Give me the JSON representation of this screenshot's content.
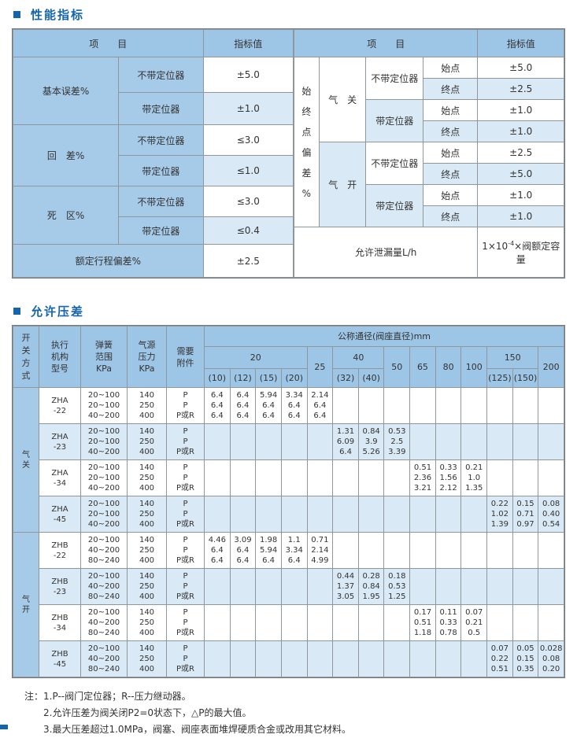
{
  "colors": {
    "accent": "#1464ae",
    "header_blue": "#9dc5e5",
    "label_blue": "#a6cbe8",
    "stripe_blue": "#d9e9f6",
    "border": "#8f979d"
  },
  "s1": {
    "title": "性能指标",
    "item_header": "项　　目",
    "value_header": "指标值",
    "left": {
      "groups": [
        {
          "label": "基本误差%",
          "sub1": "不带定位器",
          "val1": "±5.0",
          "sub2": "带定位器",
          "val2": "±1.0"
        },
        {
          "label": "回　差%",
          "sub1": "不带定位器",
          "val1": "≤3.0",
          "sub2": "带定位器",
          "val2": "≤1.0"
        },
        {
          "label": "死　区%",
          "sub1": "不带定位器",
          "val1": "≤3.0",
          "sub2": "带定位器",
          "val2": "≤0.4"
        }
      ],
      "travel_label": "额定行程偏差%",
      "travel_value": "±2.5"
    },
    "right": {
      "vertical_label": "始\n终\n点\n偏\n差\n%",
      "close_label": "气　关",
      "open_label": "气　开",
      "close_nopos": "不带定位器",
      "close_pos": "带定位器",
      "open_nopos": "不带定位器",
      "open_pos": "带定位器",
      "start": "始点",
      "end": "终点",
      "close_nopos_start": "±5.0",
      "close_nopos_end": "±2.5",
      "close_pos_start": "±1.0",
      "close_pos_end": "±1.0",
      "open_nopos_start": "±2.5",
      "open_nopos_end": "±5.0",
      "open_pos_start": "±1.0",
      "open_pos_end": "±1.0",
      "leak_label": "允许泄漏量L/h",
      "leak_prefix": "1×10",
      "leak_sup": "-4",
      "leak_suffix": "×阀额定容量"
    }
  },
  "s2": {
    "title": "允许压差",
    "header": {
      "switch_mode": "开\n关\n方\n式",
      "actuator": "执行\n机构\n型号",
      "spring": "弹簧\n范围\nKPa",
      "air": "气源\n压力\nKPa",
      "accessory": "需要\n附件",
      "nominal": "公称通径(阀座直径)mm",
      "g": [
        "20",
        "25",
        "40",
        "50",
        "65",
        "80",
        "100",
        "150",
        "200"
      ],
      "s": [
        "(10)",
        "(12)",
        "(15)",
        "(20)",
        "(32)",
        "(40)",
        "(125)",
        "(150)"
      ]
    },
    "groups": [
      {
        "label": "气\n关",
        "rows": [
          {
            "model": "ZHA\n-22",
            "spring": "20~100\n20~100\n40~200",
            "pressure": "140\n250\n400",
            "attach": "P\nP\nP或R",
            "values": [
              "6.4\n6.4\n6.4",
              "6.4\n6.4\n6.4",
              "5.94\n6.4\n6.4",
              "3.34\n6.4\n6.4",
              "2.14\n6.4\n6.4",
              "",
              "",
              "",
              "",
              "",
              "",
              "",
              "",
              ""
            ]
          },
          {
            "model": "ZHA\n-23",
            "spring": "20~100\n20~100\n40~200",
            "pressure": "140\n250\n400",
            "attach": "P\nP\nP或R",
            "values": [
              "",
              "",
              "",
              "",
              "",
              "1.31\n6.09\n6.4",
              "0.84\n3.9\n5.26",
              "0.53\n2.5\n3.39",
              "",
              "",
              "",
              "",
              "",
              ""
            ]
          },
          {
            "model": "ZHA\n-34",
            "spring": "20~100\n20~100\n40~200",
            "pressure": "140\n250\n400",
            "attach": "P\nP\nP或R",
            "values": [
              "",
              "",
              "",
              "",
              "",
              "",
              "",
              "",
              "0.51\n2.36\n3.21",
              "0.33\n1.56\n2.12",
              "0.21\n1.0\n1.35",
              "",
              "",
              ""
            ]
          },
          {
            "model": "ZHA\n-45",
            "spring": "20~100\n20~100\n40~200",
            "pressure": "140\n250\n400",
            "attach": "P\nP\nP或R",
            "values": [
              "",
              "",
              "",
              "",
              "",
              "",
              "",
              "",
              "",
              "",
              "",
              "0.22\n1.02\n1.39",
              "0.15\n0.71\n0.97",
              "0.08\n0.40\n0.54"
            ]
          }
        ]
      },
      {
        "label": "气\n开",
        "rows": [
          {
            "model": "ZHB\n-22",
            "spring": "20~100\n40~200\n80~240",
            "pressure": "140\n250\n400",
            "attach": "P\nP\nP或R",
            "values": [
              "4.46\n6.4\n6.4",
              "3.09\n6.4\n6.4",
              "1.98\n5.94\n6.4",
              "1.1\n3.34\n6.4",
              "0.71\n2.14\n4.99",
              "",
              "",
              "",
              "",
              "",
              "",
              "",
              "",
              ""
            ]
          },
          {
            "model": "ZHB\n-23",
            "spring": "20~100\n40~200\n80~240",
            "pressure": "140\n250\n400",
            "attach": "P\nP\nP或R",
            "values": [
              "",
              "",
              "",
              "",
              "",
              "0.44\n1.37\n3.05",
              "0.28\n0.84\n1.95",
              "0.18\n0.53\n1.25",
              "",
              "",
              "",
              "",
              "",
              ""
            ]
          },
          {
            "model": "ZHB\n-34",
            "spring": "20~100\n40~200\n80~240",
            "pressure": "140\n250\n400",
            "attach": "P\nP\nP或R",
            "values": [
              "",
              "",
              "",
              "",
              "",
              "",
              "",
              "",
              "0.17\n0.51\n1.18",
              "0.11\n0.33\n0.78",
              "0.07\n0.21\n0.5",
              "",
              "",
              ""
            ]
          },
          {
            "model": "ZHB\n-45",
            "spring": "20~100\n40~200\n80~240",
            "pressure": "140\n250\n400",
            "attach": "P\nP\nP或R",
            "values": [
              "",
              "",
              "",
              "",
              "",
              "",
              "",
              "",
              "",
              "",
              "",
              "0.07\n0.22\n0.51",
              "0.05\n0.15\n0.35",
              "0.028\n0.08\n0.20"
            ]
          }
        ]
      }
    ]
  },
  "notes": {
    "prefix": "注：",
    "lines": [
      "1.P--阀门定位器；R--压力继动器。",
      "2.允许压差为阀关闭P2=0状态下，△P的最大值。",
      "3.最大压差超过1.0MPa，阀塞、阀座表面堆焊硬质合金或改用其它材料。"
    ]
  }
}
